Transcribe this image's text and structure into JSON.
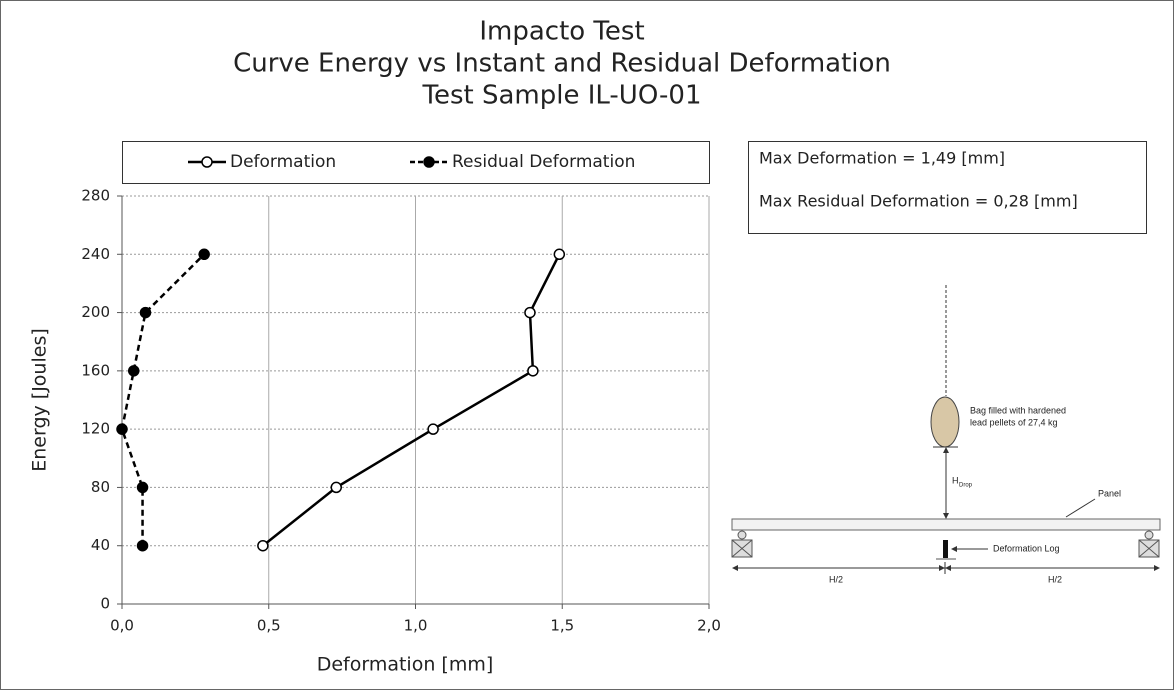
{
  "chart_data": {
    "type": "line",
    "title": [
      "Impacto Test",
      "Curve Energy vs Instant and Residual Deformation",
      "Test Sample IL-UO-01"
    ],
    "x_label": "Deformation [mm]",
    "y_label": "Energy [Joules]",
    "xlim": [
      0,
      2
    ],
    "xticks": [
      {
        "value": 0,
        "label": "0,0"
      },
      {
        "value": 0.5,
        "label": "0,5"
      },
      {
        "value": 1,
        "label": "1,0"
      },
      {
        "value": 1.5,
        "label": "1,5"
      },
      {
        "value": 2,
        "label": "2,0"
      }
    ],
    "ylim": [
      0,
      280
    ],
    "yticks": [
      0,
      40,
      80,
      120,
      160,
      200,
      240,
      280
    ],
    "grid": true,
    "legend": "top",
    "series": [
      {
        "name": "Deformation",
        "color": "#000000",
        "linestyle": "solid",
        "marker_fill": "#ffffff",
        "x": [
          0.48,
          0.73,
          1.06,
          1.4,
          1.39,
          1.49
        ],
        "values": [
          40,
          80,
          120,
          160,
          200,
          240
        ]
      },
      {
        "name": "Residual Deformation",
        "color": "#000000",
        "linestyle": "dashed",
        "marker_fill": "#000000",
        "x": [
          0.07,
          0.07,
          0.0,
          0.04,
          0.08,
          0.28
        ],
        "values": [
          40,
          80,
          120,
          160,
          200,
          240
        ]
      }
    ],
    "annotations": [
      "Max Deformation =  1,49 [mm]",
      "Max Residual Deformation  =  0,28 [mm]"
    ]
  },
  "diagram": {
    "bag": [
      "Bag filled with hardened",
      "lead pellets of 27,4 kg"
    ],
    "drop_symbol": "H",
    "drop_subscript": "Drop",
    "panel": "Panel",
    "log": "Deformation Log",
    "half_left": "H/2",
    "half_right": "H/2"
  }
}
